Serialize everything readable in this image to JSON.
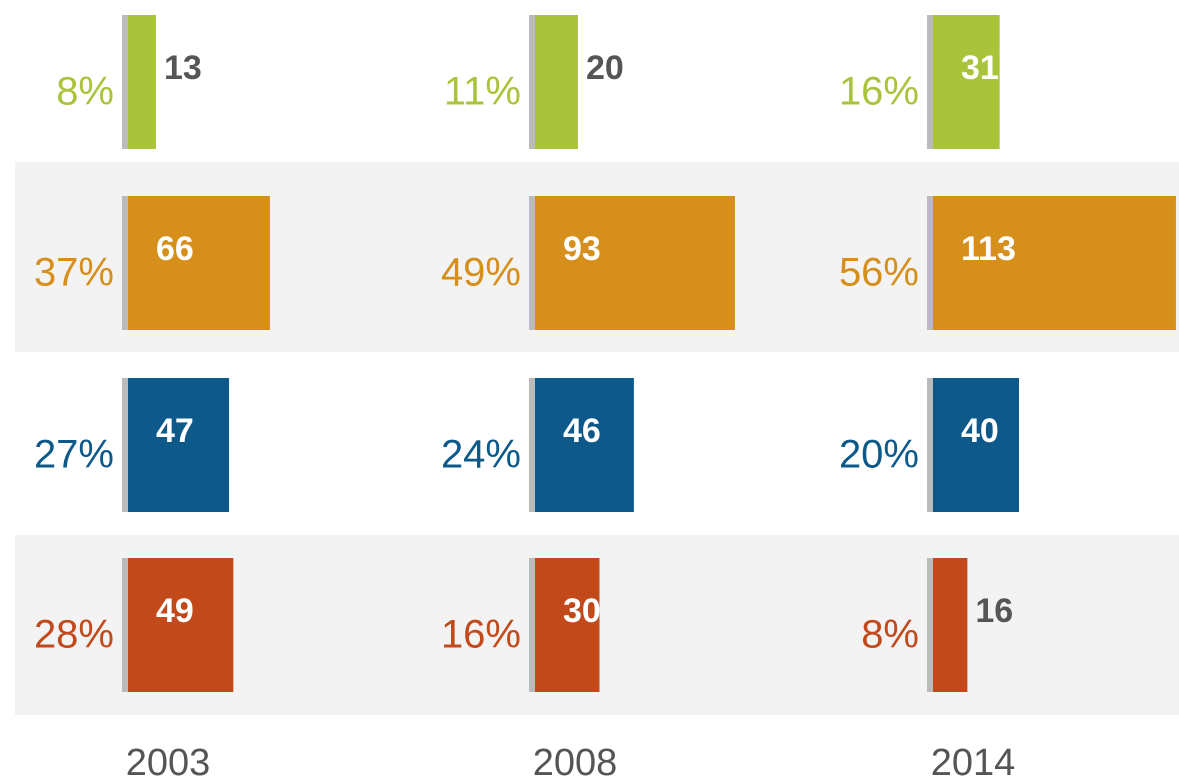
{
  "chart_data": {
    "type": "bar",
    "orientation": "horizontal",
    "categories": [
      "2003",
      "2008",
      "2014"
    ],
    "series": [
      {
        "color": "#a9c43a",
        "values": [
          13,
          20,
          31
        ],
        "shares": [
          8,
          11,
          16
        ],
        "share_labels": [
          "8%",
          "11%",
          "16%"
        ]
      },
      {
        "color": "#d58f1a",
        "values": [
          66,
          93,
          113
        ],
        "shares": [
          37,
          49,
          56
        ],
        "share_labels": [
          "37%",
          "49%",
          "56%"
        ]
      },
      {
        "color": "#0d5a8a",
        "values": [
          47,
          46,
          40
        ],
        "shares": [
          27,
          24,
          20
        ],
        "share_labels": [
          "27%",
          "24%",
          "20%"
        ]
      },
      {
        "color": "#c2491a",
        "values": [
          49,
          30,
          16
        ],
        "shares": [
          28,
          16,
          8
        ],
        "share_labels": [
          "28%",
          "16%",
          "8%"
        ]
      }
    ]
  }
}
